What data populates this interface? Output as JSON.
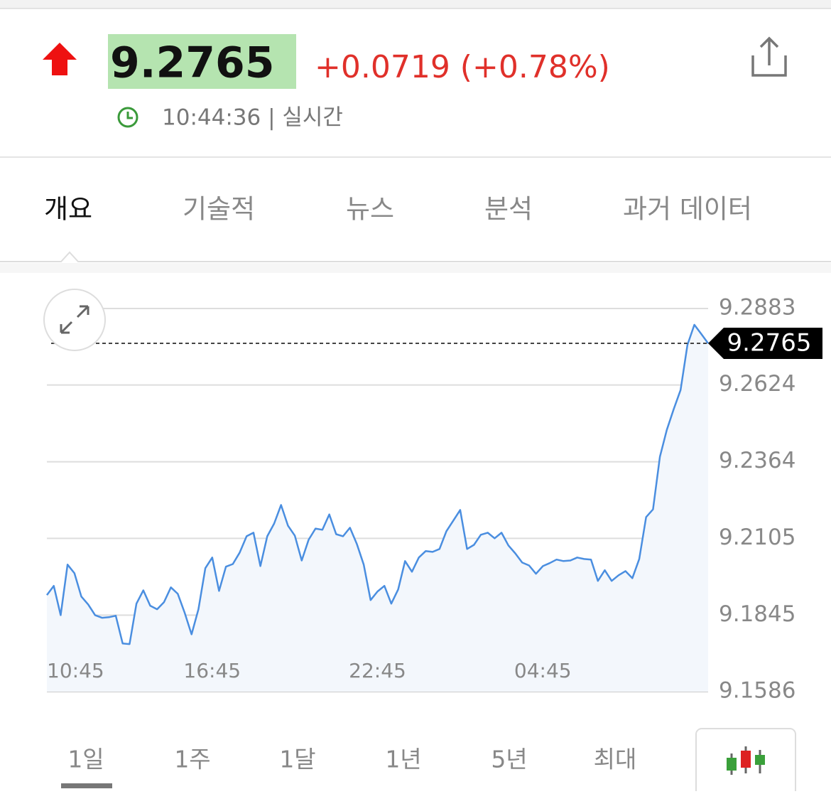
{
  "header": {
    "price": "9.2765",
    "change": "+0.0719 (+0.78%)",
    "time": "10:44:36 | 실시간"
  },
  "tabs": [
    "개요",
    "기술적",
    "뉴스",
    "분석",
    "과거 데이터"
  ],
  "ranges": [
    "1일",
    "1주",
    "1달",
    "1년",
    "5년",
    "최대"
  ],
  "chart_data": {
    "type": "line",
    "color": "#4a8ee0",
    "grid": true,
    "x": [
      0,
      0.25,
      0.5,
      0.75,
      1,
      1.25,
      1.5,
      1.75,
      2,
      2.25,
      2.5,
      2.75,
      3,
      3.25,
      3.5,
      3.75,
      4,
      4.25,
      4.5,
      4.75,
      5,
      5.25,
      5.5,
      5.75,
      6,
      6.25,
      6.5,
      6.75,
      7,
      7.25,
      7.5,
      7.75,
      8,
      8.25,
      8.5,
      8.75,
      9,
      9.25,
      9.5,
      9.75,
      10,
      10.25,
      10.5,
      10.75,
      11,
      11.25,
      11.5,
      11.75,
      12,
      12.25,
      12.5,
      12.75,
      13,
      13.25,
      13.5,
      13.75,
      14,
      14.25,
      14.5,
      14.75,
      15,
      15.25,
      15.5,
      15.75,
      16,
      16.25,
      16.5,
      16.75,
      17,
      17.25,
      17.5,
      17.75,
      18,
      18.25,
      18.5,
      18.75,
      19,
      19.25,
      19.5,
      19.75,
      20,
      20.25,
      20.5,
      20.75,
      21,
      21.25,
      21.5,
      21.75,
      22,
      22.25,
      22.5,
      22.75,
      23,
      23.25,
      23.5,
      23.75,
      24
    ],
    "values": [
      9.1913,
      9.1944,
      9.1845,
      9.2016,
      9.1987,
      9.1908,
      9.1881,
      9.1845,
      9.1836,
      9.1838,
      9.1843,
      9.1749,
      9.1747,
      9.1884,
      9.1929,
      9.1877,
      9.1865,
      9.1889,
      9.1939,
      9.1917,
      9.1853,
      9.178,
      9.1865,
      9.2004,
      9.204,
      9.1927,
      9.2009,
      9.2018,
      9.2057,
      9.2112,
      9.2124,
      9.2011,
      9.2112,
      9.2155,
      9.2218,
      9.2148,
      9.2114,
      9.203,
      9.21,
      9.2138,
      9.2134,
      9.2186,
      9.2119,
      9.2112,
      9.2141,
      9.2086,
      9.2016,
      9.1896,
      9.1925,
      9.1944,
      9.1884,
      9.1932,
      9.2028,
      9.1992,
      9.204,
      9.2062,
      9.2059,
      9.2069,
      9.2129,
      9.2165,
      9.2201,
      9.2069,
      9.2083,
      9.2117,
      9.2124,
      9.2105,
      9.2124,
      9.2081,
      9.2054,
      9.2023,
      9.2013,
      9.1985,
      9.2011,
      9.2021,
      9.2033,
      9.2028,
      9.203,
      9.204,
      9.2035,
      9.2033,
      9.1961,
      9.1997,
      9.1961,
      9.198,
      9.1994,
      9.197,
      9.2035,
      9.2177,
      9.2203,
      9.2381,
      9.2472,
      9.2542,
      9.2607,
      9.276,
      9.2828,
      9.2797,
      9.2765
    ],
    "xlim": [
      0,
      24
    ],
    "xticks": [
      {
        "value": 0,
        "label": "10:45"
      },
      {
        "value": 6,
        "label": "16:45"
      },
      {
        "value": 12,
        "label": "22:45"
      },
      {
        "value": 18,
        "label": "04:45"
      }
    ],
    "ylim": [
      9.1586,
      9.2883
    ],
    "yticks": [
      9.1586,
      9.1845,
      9.2105,
      9.2364,
      9.2624,
      9.2883
    ],
    "current": 9.2765
  }
}
